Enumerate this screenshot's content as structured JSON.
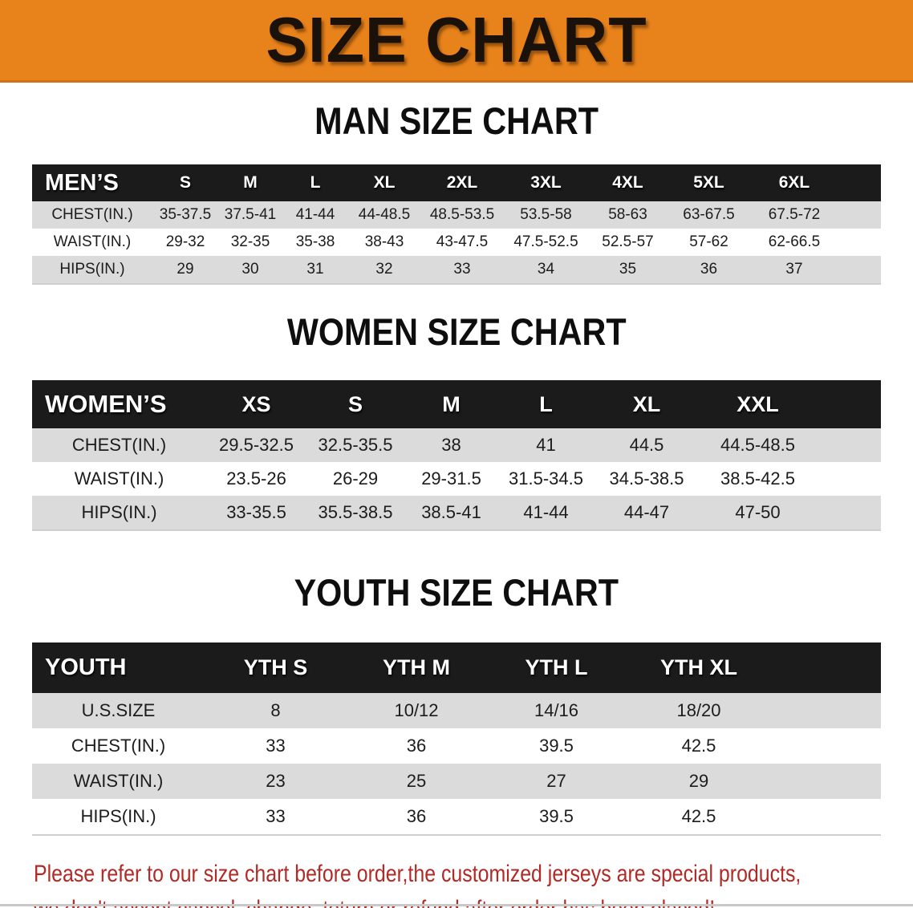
{
  "banner": {
    "title": "SIZE CHART"
  },
  "colors": {
    "banner_orange": "#E8821B",
    "header_bar_black": "#1B1B1B",
    "row_stripe_gray": "#DBDBDB",
    "disclaimer_red": "#B12A25"
  },
  "sections": [
    {
      "heading": "MAN SIZE CHART",
      "table": {
        "header": [
          "MEN’S",
          "S",
          "M",
          "L",
          "XL",
          "2XL",
          "3XL",
          "4XL",
          "5XL",
          "6XL"
        ],
        "rows": [
          [
            "CHEST(IN.)",
            "35-37.5",
            "37.5-41",
            "41-44",
            "44-48.5",
            "48.5-53.5",
            "53.5-58",
            "58-63",
            "63-67.5",
            "67.5-72"
          ],
          [
            "WAIST(IN.)",
            "29-32",
            "32-35",
            "35-38",
            "38-43",
            "43-47.5",
            "47.5-52.5",
            "52.5-57",
            "57-62",
            "62-66.5"
          ],
          [
            "HIPS(IN.)",
            "29",
            "30",
            "31",
            "32",
            "33",
            "34",
            "35",
            "36",
            "37"
          ]
        ]
      }
    },
    {
      "heading": "WOMEN SIZE CHART",
      "table": {
        "header": [
          "WOMEN’S",
          "XS",
          "S",
          "M",
          "L",
          "XL",
          "XXL"
        ],
        "rows": [
          [
            "CHEST(IN.)",
            "29.5-32.5",
            "32.5-35.5",
            "38",
            "41",
            "44.5",
            "44.5-48.5"
          ],
          [
            "WAIST(IN.)",
            "23.5-26",
            "26-29",
            "29-31.5",
            "31.5-34.5",
            "34.5-38.5",
            "38.5-42.5"
          ],
          [
            "HIPS(IN.)",
            "33-35.5",
            "35.5-38.5",
            "38.5-41",
            "41-44",
            "44-47",
            "47-50"
          ]
        ]
      }
    },
    {
      "heading": "YOUTH SIZE CHART",
      "table": {
        "header": [
          "YOUTH",
          "YTH S",
          "YTH M",
          "YTH L",
          "YTH XL"
        ],
        "rows": [
          [
            "U.S.SIZE",
            "8",
            "10/12",
            "14/16",
            "18/20"
          ],
          [
            "CHEST(IN.)",
            "33",
            "36",
            "39.5",
            "42.5"
          ],
          [
            "WAIST(IN.)",
            "23",
            "25",
            "27",
            "29"
          ],
          [
            "HIPS(IN.)",
            "33",
            "36",
            "39.5",
            "42.5"
          ]
        ]
      }
    }
  ],
  "disclaimer": {
    "lines": [
      "Please refer to our size chart before order,the customized jerseys are special products,",
      "we don't accept cancel, change, teturn or refund after order has been placed!"
    ]
  }
}
